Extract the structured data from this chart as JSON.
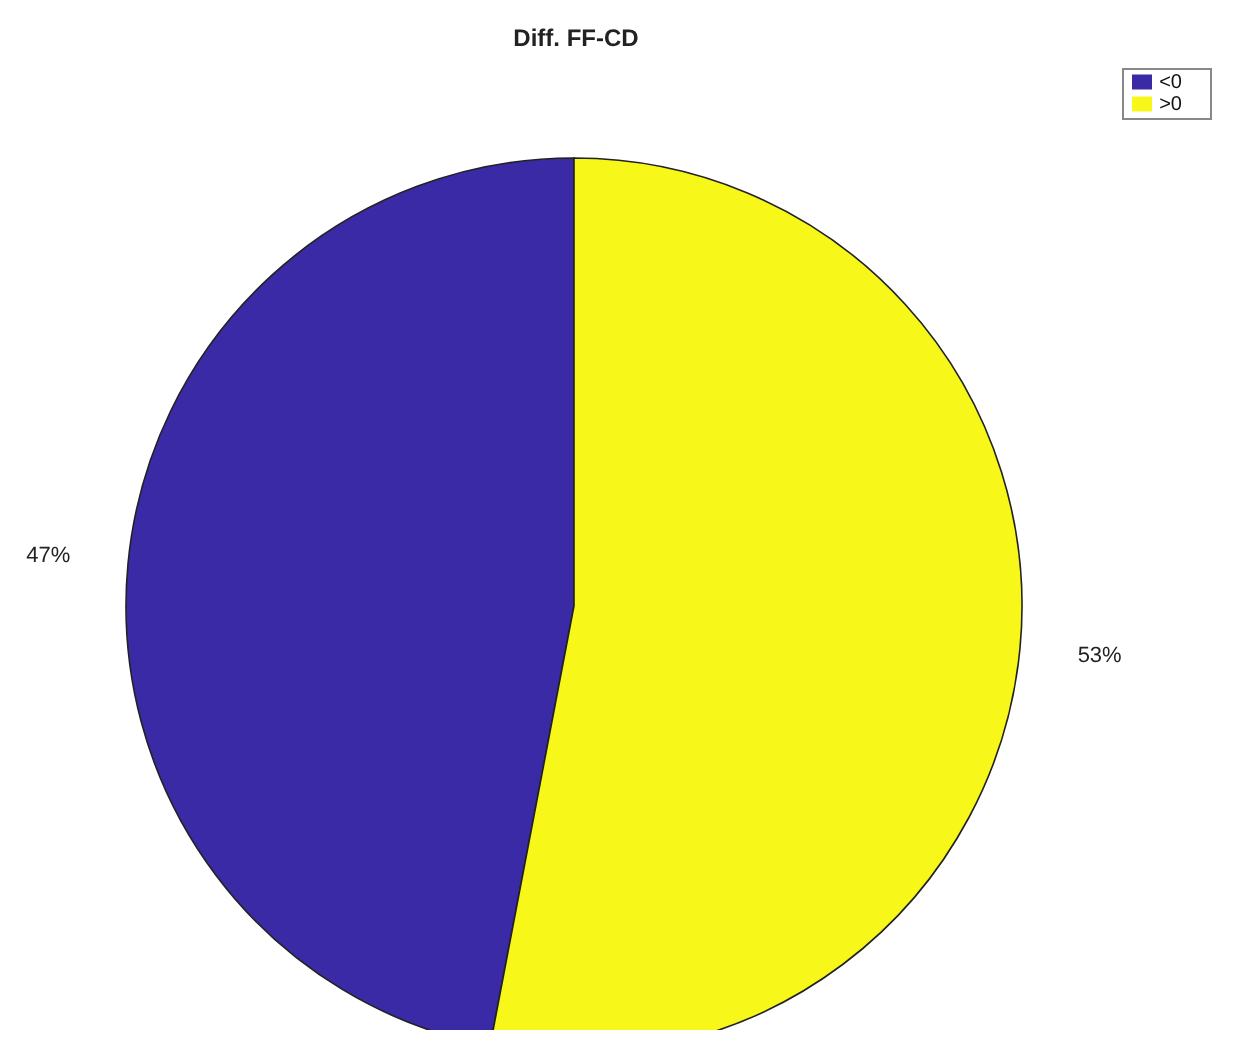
{
  "chart_data": {
    "type": "pie",
    "title": "Diff. FF-CD",
    "categories": [
      "<0",
      ">0"
    ],
    "values": [
      47,
      53
    ],
    "colors": [
      "#3a2aa5",
      "#f7f719"
    ],
    "value_labels": [
      "47%",
      "53%"
    ],
    "legend": "top right"
  }
}
